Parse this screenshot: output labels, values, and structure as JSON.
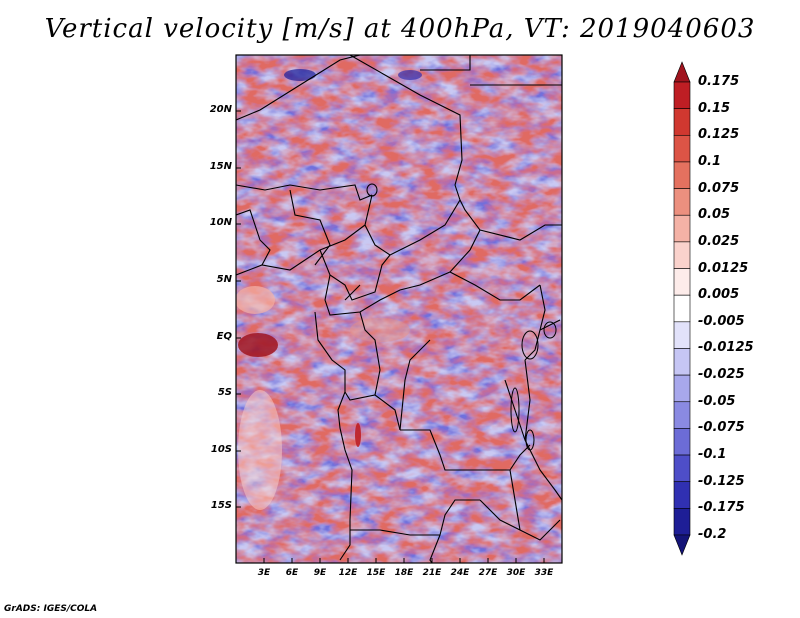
{
  "title": "Vertical velocity [m/s] at 400hPa, VT: 2019040603",
  "credit": "GrADS: IGES/COLA",
  "map": {
    "variable": "Vertical velocity",
    "units": "m/s",
    "level": "400hPa",
    "valid_time": "2019040603",
    "region": "Central Africa",
    "lat_labels": [
      "20N",
      "15N",
      "10N",
      "5N",
      "EQ",
      "5S",
      "10S",
      "15S"
    ],
    "lon_labels": [
      "3E",
      "6E",
      "9E",
      "12E",
      "15E",
      "18E",
      "21E",
      "24E",
      "27E",
      "30E",
      "33E"
    ]
  },
  "colorbar": {
    "labels": [
      "0.175",
      "0.15",
      "0.125",
      "0.1",
      "0.075",
      "0.05",
      "0.025",
      "0.0125",
      "0.005",
      "-0.005",
      "-0.0125",
      "-0.025",
      "-0.05",
      "-0.075",
      "-0.1",
      "-0.125",
      "-0.175",
      "-0.2"
    ],
    "colors": [
      "#a0141e",
      "#be1e24",
      "#d03830",
      "#dc5446",
      "#e4715f",
      "#ec907f",
      "#f4b2a6",
      "#fad2cc",
      "#fdecea",
      "#ffffff",
      "#e2e2fa",
      "#c6c6f4",
      "#a8a8ec",
      "#8a8ae2",
      "#6c6cd6",
      "#4e4ec8",
      "#3030b2",
      "#1e1e96",
      "#141478"
    ]
  }
}
